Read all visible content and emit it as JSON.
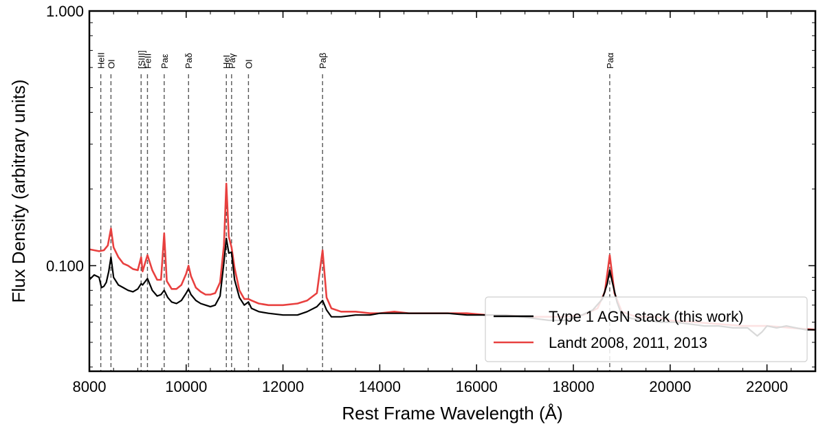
{
  "chart_data": {
    "type": "line",
    "xlabel": "Rest Frame Wavelength (Å)",
    "ylabel": "Flux Density (arbitrary units)",
    "xlim": [
      8000,
      23000
    ],
    "ylim": [
      0.0385,
      1.0
    ],
    "yscale": "log",
    "grid": false,
    "legend_position": "bottom-right",
    "x_ticks": [
      8000,
      10000,
      12000,
      14000,
      16000,
      18000,
      20000,
      22000
    ],
    "x_tick_labels": [
      "8000",
      "10000",
      "12000",
      "14000",
      "16000",
      "18000",
      "20000",
      "22000"
    ],
    "y_ticks": [
      0.1,
      1.0
    ],
    "y_tick_labels": [
      "0.100",
      "1.000"
    ],
    "emission_lines": [
      {
        "label": "HeII",
        "wavelength": 8236
      },
      {
        "label": "OI",
        "wavelength": 8446
      },
      {
        "label": "[SIII]",
        "wavelength": 9069
      },
      {
        "label": "FeII",
        "wavelength": 9200
      },
      {
        "label": "Paε",
        "wavelength": 9546
      },
      {
        "label": "Paδ",
        "wavelength": 10049
      },
      {
        "label": "HeI",
        "wavelength": 10830
      },
      {
        "label": "Paγ",
        "wavelength": 10938
      },
      {
        "label": "OI",
        "wavelength": 11287
      },
      {
        "label": "Paβ",
        "wavelength": 12818
      },
      {
        "label": "Paα",
        "wavelength": 18751
      }
    ],
    "series": [
      {
        "name": "Type 1 AGN stack (this work)",
        "color": "#000000",
        "x": [
          8000,
          8100,
          8200,
          8250,
          8300,
          8350,
          8400,
          8446,
          8500,
          8600,
          8700,
          8800,
          8900,
          9000,
          9069,
          9100,
          9200,
          9300,
          9400,
          9480,
          9546,
          9620,
          9700,
          9800,
          9900,
          10000,
          10049,
          10100,
          10200,
          10300,
          10400,
          10500,
          10600,
          10700,
          10780,
          10830,
          10880,
          10938,
          11000,
          11100,
          11200,
          11287,
          11350,
          11500,
          11700,
          12000,
          12300,
          12500,
          12700,
          12818,
          12900,
          13000,
          13200,
          13500,
          13800,
          14000,
          14300,
          14600,
          15000,
          15400,
          15800,
          16200,
          16600,
          16900,
          17200,
          17500,
          17800,
          18100,
          18400,
          18600,
          18700,
          18751,
          18800,
          18900,
          19000,
          19200,
          19500,
          19800,
          20100,
          20400,
          20700,
          21000,
          21300,
          21600,
          21800,
          21900,
          22000,
          22200,
          22400,
          22600,
          22800,
          23000
        ],
        "values": [
          0.088,
          0.092,
          0.09,
          0.082,
          0.083,
          0.086,
          0.095,
          0.108,
          0.09,
          0.084,
          0.082,
          0.08,
          0.079,
          0.081,
          0.085,
          0.084,
          0.089,
          0.08,
          0.076,
          0.077,
          0.08,
          0.075,
          0.072,
          0.071,
          0.073,
          0.078,
          0.081,
          0.077,
          0.073,
          0.071,
          0.07,
          0.069,
          0.07,
          0.076,
          0.103,
          0.128,
          0.112,
          0.113,
          0.088,
          0.075,
          0.07,
          0.072,
          0.068,
          0.066,
          0.065,
          0.064,
          0.064,
          0.066,
          0.069,
          0.073,
          0.067,
          0.063,
          0.063,
          0.064,
          0.064,
          0.065,
          0.065,
          0.065,
          0.065,
          0.065,
          0.064,
          0.064,
          0.064,
          0.063,
          0.062,
          0.061,
          0.061,
          0.063,
          0.067,
          0.074,
          0.085,
          0.096,
          0.087,
          0.072,
          0.064,
          0.062,
          0.061,
          0.06,
          0.06,
          0.059,
          0.058,
          0.058,
          0.057,
          0.057,
          0.053,
          0.055,
          0.058,
          0.057,
          0.058,
          0.057,
          0.056,
          0.056
        ]
      },
      {
        "name": "Landt 2008, 2011, 2013",
        "color": "#e8403f",
        "x": [
          8000,
          8100,
          8200,
          8300,
          8380,
          8446,
          8500,
          8600,
          8700,
          8800,
          8900,
          9000,
          9069,
          9100,
          9200,
          9300,
          9400,
          9480,
          9546,
          9600,
          9700,
          9800,
          9900,
          10000,
          10049,
          10100,
          10200,
          10300,
          10400,
          10500,
          10600,
          10700,
          10780,
          10830,
          10880,
          10938,
          11000,
          11100,
          11200,
          11287,
          11350,
          11500,
          11700,
          12000,
          12300,
          12500,
          12700,
          12818,
          12900,
          13000,
          13200,
          13500,
          13800,
          14000,
          14300,
          14600,
          15000,
          15400,
          15800,
          16200,
          16600,
          17000,
          17400,
          17800,
          18200,
          18500,
          18650,
          18751,
          18850,
          19000,
          19300,
          19700,
          20000,
          20500,
          21000,
          21500,
          22000,
          22500,
          23000
        ],
        "values": [
          0.116,
          0.115,
          0.114,
          0.115,
          0.12,
          0.14,
          0.118,
          0.108,
          0.102,
          0.1,
          0.097,
          0.096,
          0.108,
          0.095,
          0.11,
          0.096,
          0.088,
          0.088,
          0.134,
          0.087,
          0.081,
          0.081,
          0.084,
          0.093,
          0.1,
          0.091,
          0.082,
          0.079,
          0.077,
          0.077,
          0.078,
          0.086,
          0.12,
          0.21,
          0.13,
          0.118,
          0.098,
          0.08,
          0.074,
          0.074,
          0.073,
          0.071,
          0.07,
          0.07,
          0.071,
          0.073,
          0.078,
          0.115,
          0.075,
          0.068,
          0.066,
          0.066,
          0.065,
          0.065,
          0.066,
          0.065,
          0.065,
          0.065,
          0.065,
          0.064,
          0.064,
          0.063,
          0.063,
          0.063,
          0.064,
          0.068,
          0.079,
          0.11,
          0.078,
          0.066,
          0.063,
          0.063,
          0.061,
          0.06,
          0.059,
          0.058,
          0.058,
          0.057,
          0.056
        ]
      }
    ]
  }
}
